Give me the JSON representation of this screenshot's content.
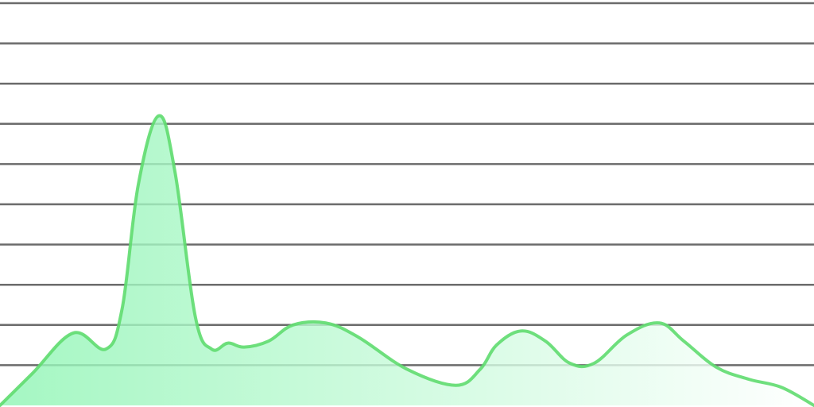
{
  "chart_data": {
    "type": "area",
    "title": "",
    "xlabel": "",
    "ylabel": "",
    "xlim": [
      0,
      100
    ],
    "ylim": [
      0,
      10
    ],
    "grid": true,
    "gridlines_y": [
      1,
      2,
      3,
      4,
      5,
      6,
      7,
      8,
      9,
      10
    ],
    "series": [
      {
        "x": [
          0,
          4,
          9,
          13,
          15,
          17,
          19.5,
          21.5,
          24,
          26,
          28,
          30,
          33,
          36,
          40,
          44,
          50,
          56,
          59,
          61,
          64,
          67,
          70,
          73,
          77,
          81,
          84,
          88,
          92,
          96,
          100
        ],
        "y": [
          0,
          0.8,
          1.8,
          1.4,
          2.4,
          5.5,
          7.2,
          5.8,
          2.2,
          1.4,
          1.55,
          1.45,
          1.6,
          2.0,
          2.05,
          1.7,
          0.9,
          0.5,
          0.9,
          1.5,
          1.85,
          1.6,
          1.05,
          1.05,
          1.75,
          2.05,
          1.6,
          0.95,
          0.65,
          0.45,
          0.0
        ],
        "line_color": "#5fdc6f",
        "fill_color_start": "#8ff5b4",
        "fill_color_end": "#ffffff"
      }
    ],
    "colors": {
      "grid": "#6b6b6b",
      "background": "#ffffff"
    }
  }
}
